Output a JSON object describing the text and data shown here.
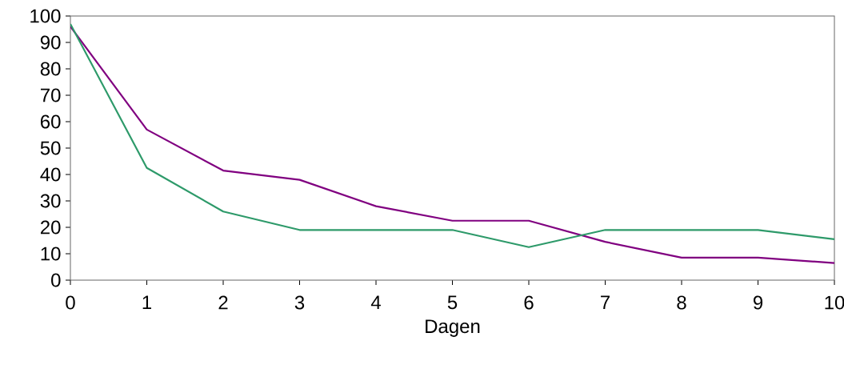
{
  "chart_data": {
    "type": "line",
    "xlabel": "Dagen",
    "x": [
      0,
      1,
      2,
      3,
      4,
      5,
      6,
      7,
      8,
      9,
      10
    ],
    "series": [
      {
        "color": "#800080",
        "values": [
          96,
          57,
          41.5,
          38,
          28,
          22.5,
          22.5,
          14.5,
          8.5,
          8.5,
          6.5
        ]
      },
      {
        "color": "#2e9a6a",
        "values": [
          97,
          42.5,
          26,
          19,
          19,
          19,
          12.5,
          19,
          19,
          19,
          15.5
        ]
      }
    ],
    "xlim": [
      0,
      10
    ],
    "ylim": [
      0,
      100
    ],
    "xticks": [
      0,
      1,
      2,
      3,
      4,
      5,
      6,
      7,
      8,
      9,
      10
    ],
    "yticks": [
      0,
      10,
      20,
      30,
      40,
      50,
      60,
      70,
      80,
      90,
      100
    ],
    "grid": false,
    "marker": "none",
    "line_style": "solid"
  }
}
